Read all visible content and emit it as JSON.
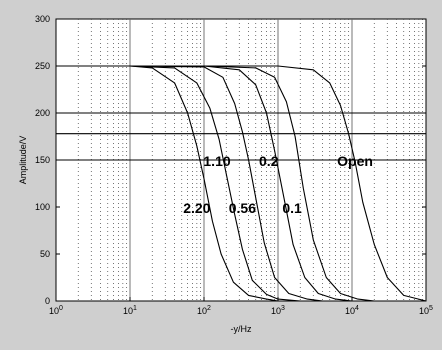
{
  "chart_data": {
    "type": "line",
    "xscale": "log",
    "xlim": [
      1,
      100000
    ],
    "ylim": [
      0,
      300
    ],
    "xlabel": "-y/Hz",
    "ylabel": "Amplitude/V",
    "x_ticks": [
      {
        "base": "10",
        "exp": "0"
      },
      {
        "base": "10",
        "exp": "1"
      },
      {
        "base": "10",
        "exp": "2"
      },
      {
        "base": "10",
        "exp": "3"
      },
      {
        "base": "10",
        "exp": "4"
      },
      {
        "base": "10",
        "exp": "5"
      }
    ],
    "y_ticks": [
      "0",
      "50",
      "100",
      "150",
      "200",
      "250",
      "300"
    ],
    "grid": "dotted minor vertical, solid decade verticals",
    "reference_lines_y": [
      150,
      178,
      200
    ],
    "series": [
      {
        "name": "2.20",
        "x": [
          1,
          10,
          20,
          40,
          60,
          80,
          100,
          130,
          170,
          250,
          400,
          700,
          1000
        ],
        "y": [
          250,
          250,
          248,
          232,
          200,
          165,
          130,
          85,
          50,
          20,
          6,
          2,
          0
        ]
      },
      {
        "name": "1.10",
        "x": [
          1,
          10,
          40,
          80,
          120,
          160,
          200,
          260,
          330,
          450,
          700,
          1000,
          2000
        ],
        "y": [
          250,
          250,
          248,
          232,
          205,
          172,
          135,
          92,
          55,
          22,
          7,
          2,
          0
        ]
      },
      {
        "name": "0.56",
        "x": [
          1,
          10,
          100,
          180,
          260,
          330,
          400,
          500,
          650,
          900,
          1400,
          2500,
          4000
        ],
        "y": [
          250,
          250,
          249,
          238,
          210,
          180,
          150,
          110,
          62,
          25,
          8,
          2,
          0
        ]
      },
      {
        "name": "0.2",
        "x": [
          1,
          10,
          100,
          300,
          500,
          700,
          900,
          1200,
          1600,
          2300,
          3500,
          6000,
          10000
        ],
        "y": [
          250,
          250,
          250,
          246,
          230,
          200,
          160,
          110,
          60,
          25,
          8,
          2,
          0
        ]
      },
      {
        "name": "0.1",
        "x": [
          1,
          10,
          100,
          500,
          900,
          1300,
          1700,
          2200,
          3000,
          4500,
          7000,
          12000,
          20000
        ],
        "y": [
          250,
          250,
          250,
          248,
          238,
          212,
          175,
          120,
          65,
          25,
          8,
          2,
          0
        ]
      },
      {
        "name": "Open",
        "x": [
          1,
          10,
          100,
          1000,
          3000,
          5000,
          7000,
          9000,
          11000,
          14000,
          20000,
          30000,
          50000,
          100000
        ],
        "y": [
          250,
          250,
          250,
          250,
          246,
          232,
          208,
          178,
          148,
          105,
          60,
          25,
          6,
          0
        ]
      }
    ],
    "annotations": [
      {
        "text": "1.10",
        "x": 150,
        "y": 150
      },
      {
        "text": "0.2",
        "x": 750,
        "y": 150
      },
      {
        "text": "Open",
        "x": 11000,
        "y": 150
      },
      {
        "text": "2.20",
        "x": 80,
        "y": 100
      },
      {
        "text": "0.56",
        "x": 330,
        "y": 100
      },
      {
        "text": "0.1",
        "x": 1550,
        "y": 100
      }
    ]
  }
}
